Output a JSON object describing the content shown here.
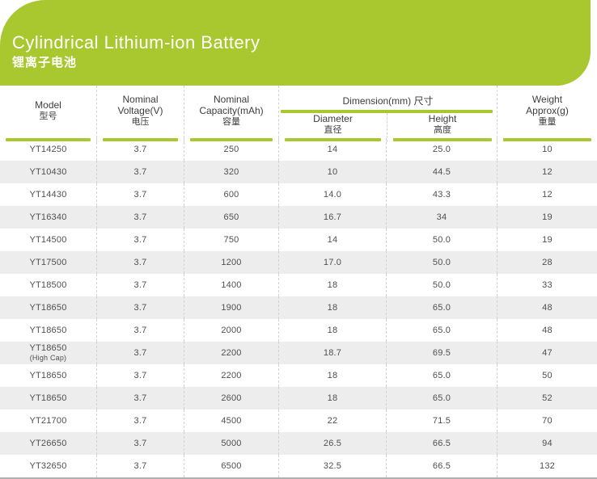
{
  "banner": {
    "title": "Cylindrical Lithium-ion Battery",
    "subtitle": "锂离子电池"
  },
  "colors": {
    "accent": "#a9c72f",
    "row_alt": "#ededed",
    "dashed_divider": "#d2d2d2",
    "body_text": "#4f4f4f",
    "bottom_line": "#b0b0b0"
  },
  "table": {
    "header": {
      "model_en": "Model",
      "model_zh": "型号",
      "voltage_en1": "Nominal",
      "voltage_en2": "Voltage(V)",
      "voltage_zh": "电压",
      "capacity_en1": "Nominal",
      "capacity_en2": "Capacity(mAh)",
      "capacity_zh": "容量",
      "dimension_group": "Dimension(mm) 尺寸",
      "diameter_en": "Diameter",
      "diameter_zh": "直径",
      "height_en": "Height",
      "height_zh": "高度",
      "weight_en1": "Weight",
      "weight_en2": "Approx(g)",
      "weight_zh": "重量"
    },
    "rows": [
      {
        "model": "YT14250",
        "model_sub": "",
        "voltage": "3.7",
        "capacity": "250",
        "diameter": "14",
        "height": "25.0",
        "weight": "10"
      },
      {
        "model": "YT10430",
        "model_sub": "",
        "voltage": "3.7",
        "capacity": "320",
        "diameter": "10",
        "height": "44.5",
        "weight": "12"
      },
      {
        "model": "YT14430",
        "model_sub": "",
        "voltage": "3.7",
        "capacity": "600",
        "diameter": "14.0",
        "height": "43.3",
        "weight": "12"
      },
      {
        "model": "YT16340",
        "model_sub": "",
        "voltage": "3.7",
        "capacity": "650",
        "diameter": "16.7",
        "height": "34",
        "weight": "19"
      },
      {
        "model": "YT14500",
        "model_sub": "",
        "voltage": "3.7",
        "capacity": "750",
        "diameter": "14",
        "height": "50.0",
        "weight": "19"
      },
      {
        "model": "YT17500",
        "model_sub": "",
        "voltage": "3.7",
        "capacity": "1200",
        "diameter": "17.0",
        "height": "50.0",
        "weight": "28"
      },
      {
        "model": "YT18500",
        "model_sub": "",
        "voltage": "3.7",
        "capacity": "1400",
        "diameter": "18",
        "height": "50.0",
        "weight": "33"
      },
      {
        "model": "YT18650",
        "model_sub": "",
        "voltage": "3.7",
        "capacity": "1900",
        "diameter": "18",
        "height": "65.0",
        "weight": "48"
      },
      {
        "model": "YT18650",
        "model_sub": "",
        "voltage": "3.7",
        "capacity": "2000",
        "diameter": "18",
        "height": "65.0",
        "weight": "48"
      },
      {
        "model": "YT18650",
        "model_sub": "(High Cap)",
        "voltage": "3.7",
        "capacity": "2200",
        "diameter": "18.7",
        "height": "69.5",
        "weight": "47"
      },
      {
        "model": "YT18650",
        "model_sub": "",
        "voltage": "3.7",
        "capacity": "2200",
        "diameter": "18",
        "height": "65.0",
        "weight": "50"
      },
      {
        "model": "YT18650",
        "model_sub": "",
        "voltage": "3.7",
        "capacity": "2600",
        "diameter": "18",
        "height": "65.0",
        "weight": "52"
      },
      {
        "model": "YT21700",
        "model_sub": "",
        "voltage": "3.7",
        "capacity": "4500",
        "diameter": "22",
        "height": "71.5",
        "weight": "70"
      },
      {
        "model": "YT26650",
        "model_sub": "",
        "voltage": "3.7",
        "capacity": "5000",
        "diameter": "26.5",
        "height": "66.5",
        "weight": "94"
      },
      {
        "model": "YT32650",
        "model_sub": "",
        "voltage": "3.7",
        "capacity": "6500",
        "diameter": "32.5",
        "height": "66.5",
        "weight": "132"
      }
    ]
  }
}
